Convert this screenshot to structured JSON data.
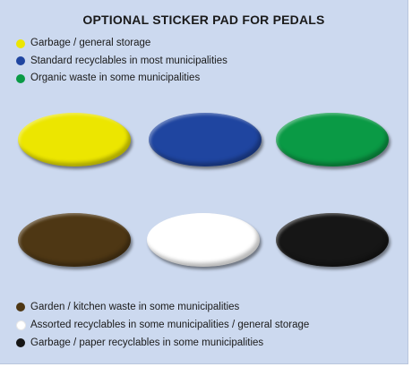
{
  "title": "OPTIONAL STICKER PAD FOR PEDALS",
  "legend_top": [
    {
      "label": "Garbage / general storage",
      "color": "#ece600"
    },
    {
      "label": "Standard recyclables in most municipalities",
      "color": "#1f45a0"
    },
    {
      "label": "Organic waste in some municipalities",
      "color": "#0a9a45"
    }
  ],
  "stickers": [
    {
      "color": "#ece600"
    },
    {
      "color": "#1f45a0"
    },
    {
      "color": "#0a9a45"
    },
    {
      "color": "#4e3714"
    },
    {
      "color": "#ffffff"
    },
    {
      "color": "#161616"
    }
  ],
  "legend_bottom": [
    {
      "label": "Garden / kitchen waste in some municipalities",
      "color": "#4e3714"
    },
    {
      "label": "Assorted recyclables in some municipalities / general storage",
      "color": "#ffffff"
    },
    {
      "label": "Garbage / paper recyclables in some municipalities",
      "color": "#161616"
    }
  ]
}
